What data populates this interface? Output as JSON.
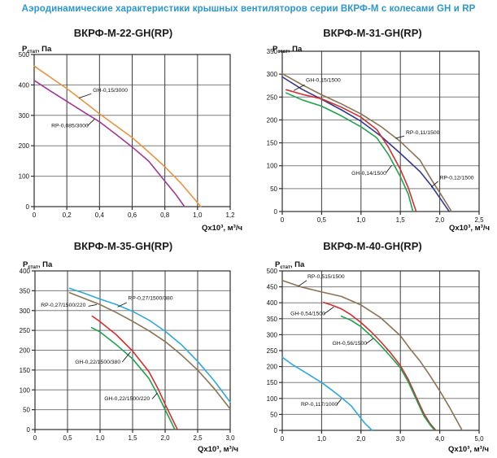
{
  "page": {
    "title": "Аэродинамические характеристики крышных вентиляторов серии ВКРФ-М с колесами GH и RP",
    "title_color": "#2C96CF"
  },
  "axis": {
    "y_title": {
      "pre": "P",
      "sub": "стат",
      "post": ", Па"
    },
    "x_title": "Qx10³, м³/ч"
  },
  "style": {
    "grid_h": "#7d7d7d",
    "grid_v": "#3c3c3c",
    "border": "#2e2e2e",
    "text": "#111111",
    "leader": "#1a1a1a"
  },
  "chart_data": [
    {
      "type": "line",
      "title": "ВКРФ-М-22-GH(RP)",
      "xlabel": "Qx10³, м³/ч",
      "ylabel": "Pстат, Па",
      "xlim": [
        0,
        1.2
      ],
      "ylim": [
        0,
        500
      ],
      "xticks": [
        "0",
        "0,2",
        "0,4",
        "0,6",
        "0,8",
        "1,0",
        "1,2"
      ],
      "yticks": [
        "0",
        "100",
        "200",
        "300",
        "400",
        "500"
      ],
      "series": [
        {
          "name": "GH-0,15/3000",
          "color": "#E8933F",
          "points": [
            [
              0,
              462
            ],
            [
              0.1,
              425
            ],
            [
              0.2,
              388
            ],
            [
              0.3,
              347
            ],
            [
              0.4,
              305
            ],
            [
              0.5,
              266
            ],
            [
              0.6,
              227
            ],
            [
              0.7,
              180
            ],
            [
              0.8,
              131
            ],
            [
              0.9,
              76
            ],
            [
              1.0,
              13
            ],
            [
              1.02,
              0
            ]
          ]
        },
        {
          "name": "RP-0,085/3000",
          "color": "#9E3A96",
          "points": [
            [
              0,
              415
            ],
            [
              0.1,
              380
            ],
            [
              0.2,
              346
            ],
            [
              0.3,
              312
            ],
            [
              0.4,
              279
            ],
            [
              0.5,
              238
            ],
            [
              0.6,
              196
            ],
            [
              0.7,
              150
            ],
            [
              0.8,
              84
            ],
            [
              0.87,
              38
            ],
            [
              0.92,
              0
            ]
          ]
        }
      ],
      "annotations": [
        {
          "text": "GH-0,15/3000",
          "tx": 0.36,
          "ty": 377,
          "line": [
            [
              0.35,
              371
            ],
            [
              0.275,
              357
            ]
          ]
        },
        {
          "text": "RP-0,085/3000",
          "tx": 0.105,
          "ty": 261,
          "line": [
            [
              0.325,
              265
            ],
            [
              0.37,
              288
            ]
          ]
        }
      ]
    },
    {
      "type": "line",
      "title": "ВКРФ-М-31-GH(RP)",
      "xlabel": "Qx10³, м³/ч",
      "ylabel": "Pстат, Па",
      "xlim": [
        0,
        2.5
      ],
      "ylim": [
        0,
        350
      ],
      "xticks": [
        "0",
        "0,5",
        "1,0",
        "1,5",
        "2,0",
        "2,5"
      ],
      "yticks": [
        "0",
        "50",
        "100",
        "150",
        "200",
        "250",
        "300",
        "350"
      ],
      "series": [
        {
          "name": "RP-0,11/1500",
          "color": "#8A7355",
          "points": [
            [
              0,
              301
            ],
            [
              0.25,
              277
            ],
            [
              0.5,
              255
            ],
            [
              0.75,
              235
            ],
            [
              1.0,
              213
            ],
            [
              1.25,
              186
            ],
            [
              1.5,
              153
            ],
            [
              1.75,
              112
            ],
            [
              1.9,
              68
            ],
            [
              2.05,
              28
            ],
            [
              2.15,
              0
            ]
          ]
        },
        {
          "name": "RP-0,12/1500",
          "color": "#333A8C",
          "points": [
            [
              0,
              294
            ],
            [
              0.25,
              267
            ],
            [
              0.5,
              245
            ],
            [
              0.75,
              222
            ],
            [
              1.0,
              197
            ],
            [
              1.25,
              165
            ],
            [
              1.5,
              127
            ],
            [
              1.75,
              87
            ],
            [
              1.9,
              55
            ],
            [
              2.0,
              30
            ],
            [
              2.12,
              0
            ]
          ]
        },
        {
          "name": "GH-0,15/1500",
          "color": "#D03030",
          "points": [
            [
              0.05,
              266
            ],
            [
              0.25,
              256
            ],
            [
              0.5,
              246
            ],
            [
              0.75,
              228
            ],
            [
              1.0,
              206
            ],
            [
              1.2,
              179
            ],
            [
              1.35,
              140
            ],
            [
              1.5,
              92
            ],
            [
              1.6,
              52
            ],
            [
              1.7,
              0
            ]
          ]
        },
        {
          "name": "GH-0,14/1500",
          "color": "#1FA050",
          "points": [
            [
              0.05,
              259
            ],
            [
              0.25,
              244
            ],
            [
              0.5,
              230
            ],
            [
              0.75,
              209
            ],
            [
              1.0,
              185
            ],
            [
              1.2,
              161
            ],
            [
              1.35,
              124
            ],
            [
              1.5,
              76
            ],
            [
              1.6,
              38
            ],
            [
              1.66,
              0
            ]
          ]
        }
      ],
      "annotations": [
        {
          "text": "GH-0,15/1500",
          "tx": 0.3,
          "ty": 283,
          "line": [
            [
              0.285,
              277
            ],
            [
              0.145,
              264
            ]
          ]
        },
        {
          "text": "RP-0,11/1500",
          "tx": 1.57,
          "ty": 169,
          "line": [
            [
              1.55,
              165
            ],
            [
              1.44,
              160
            ]
          ]
        },
        {
          "text": "GH-0,14/1500",
          "tx": 0.88,
          "ty": 80,
          "line": [
            [
              1.32,
              85
            ],
            [
              1.39,
              101
            ]
          ]
        },
        {
          "text": "RP-0,12/1500",
          "tx": 2.0,
          "ty": 70,
          "line": [
            [
              1.98,
              66
            ],
            [
              1.89,
              53
            ]
          ]
        }
      ]
    },
    {
      "type": "line",
      "title": "ВКРФ-М-35-GH(RP)",
      "xlabel": "Qx10³, м³/ч",
      "ylabel": "Pстат, Па",
      "xlim": [
        0,
        3.0
      ],
      "ylim": [
        0,
        400
      ],
      "xticks": [
        "0",
        "0,5",
        "1,0",
        "1,5",
        "2,0",
        "2,5",
        "3,0"
      ],
      "yticks": [
        "0",
        "50",
        "100",
        "150",
        "200",
        "250",
        "300",
        "350",
        "400"
      ],
      "series": [
        {
          "name": "RP-0,27/1500/380",
          "color": "#2FA8DC",
          "points": [
            [
              0.53,
              356
            ],
            [
              0.75,
              344
            ],
            [
              1.0,
              329
            ],
            [
              1.25,
              315
            ],
            [
              1.5,
              298
            ],
            [
              1.75,
              276
            ],
            [
              2.0,
              248
            ],
            [
              2.25,
              214
            ],
            [
              2.5,
              172
            ],
            [
              2.75,
              124
            ],
            [
              3.0,
              69
            ]
          ]
        },
        {
          "name": "RP-0,27/1500/220",
          "color": "#8A7355",
          "points": [
            [
              0.53,
              345
            ],
            [
              0.75,
              331
            ],
            [
              1.0,
              315
            ],
            [
              1.25,
              295
            ],
            [
              1.5,
              273
            ],
            [
              1.75,
              249
            ],
            [
              2.0,
              222
            ],
            [
              2.25,
              188
            ],
            [
              2.5,
              150
            ],
            [
              2.75,
              104
            ],
            [
              3.0,
              52
            ]
          ]
        },
        {
          "name": "GH-0,22/1500/380",
          "color": "#D03030",
          "points": [
            [
              0.88,
              286
            ],
            [
              1.0,
              272
            ],
            [
              1.25,
              239
            ],
            [
              1.5,
              198
            ],
            [
              1.75,
              146
            ],
            [
              1.9,
              100
            ],
            [
              2.0,
              64
            ],
            [
              2.1,
              30
            ],
            [
              2.19,
              0
            ]
          ]
        },
        {
          "name": "GH-0,22/1500/220",
          "color": "#1FA050",
          "points": [
            [
              0.87,
              257
            ],
            [
              1.0,
              246
            ],
            [
              1.25,
              214
            ],
            [
              1.5,
              178
            ],
            [
              1.75,
              129
            ],
            [
              1.9,
              84
            ],
            [
              2.0,
              50
            ],
            [
              2.15,
              0
            ]
          ]
        }
      ],
      "annotations": [
        {
          "text": "RP-0,27/1500/380",
          "tx": 1.43,
          "ty": 327,
          "line": [
            [
              1.41,
              320
            ],
            [
              1.27,
              309
            ]
          ]
        },
        {
          "text": "RP-0,27/1500/220",
          "tx": 0.09,
          "ty": 310,
          "line": [
            [
              0.82,
              311
            ],
            [
              0.95,
              315
            ]
          ]
        },
        {
          "text": "GH-0,22/1500/380",
          "tx": 0.615,
          "ty": 166,
          "line": [
            [
              1.34,
              170
            ],
            [
              1.47,
              196
            ]
          ]
        },
        {
          "text": "GH-0,22/1500/220",
          "tx": 1.065,
          "ty": 74,
          "line": [
            [
              1.8,
              77
            ],
            [
              1.88,
              92
            ]
          ]
        }
      ]
    },
    {
      "type": "line",
      "title": "ВКРФ-М-40-GH(RP)",
      "xlabel": "Qx10³, м³/ч",
      "ylabel": "Pстат, Па",
      "xlim": [
        0,
        5.0
      ],
      "ylim": [
        0,
        500
      ],
      "xticks": [
        "0",
        "1,0",
        "2,0",
        "3,0",
        "4,0",
        "5,0"
      ],
      "yticks": [
        "0",
        "50",
        "100",
        "150",
        "200",
        "250",
        "300",
        "350",
        "400",
        "450",
        "500"
      ],
      "series": [
        {
          "name": "RP-0,515/1500",
          "color": "#8A7355",
          "points": [
            [
              0,
              470
            ],
            [
              0.5,
              449
            ],
            [
              1.0,
              434
            ],
            [
              1.5,
              420
            ],
            [
              2.0,
              393
            ],
            [
              2.5,
              353
            ],
            [
              3.0,
              297
            ],
            [
              3.25,
              255
            ],
            [
              3.5,
              217
            ],
            [
              3.75,
              172
            ],
            [
              4.0,
              124
            ],
            [
              4.25,
              72
            ],
            [
              4.57,
              0
            ]
          ]
        },
        {
          "name": "GH-0,54/1500",
          "color": "#D03030",
          "points": [
            [
              1.05,
              401
            ],
            [
              1.25,
              393
            ],
            [
              1.5,
              381
            ],
            [
              1.75,
              362
            ],
            [
              2.0,
              338
            ],
            [
              2.25,
              310
            ],
            [
              2.5,
              278
            ],
            [
              2.75,
              243
            ],
            [
              3.0,
              203
            ],
            [
              3.2,
              160
            ],
            [
              3.4,
              105
            ],
            [
              3.6,
              52
            ],
            [
              3.75,
              22
            ],
            [
              3.9,
              0
            ]
          ]
        },
        {
          "name": "GH-0,56/1500",
          "color": "#1FA050",
          "points": [
            [
              1.5,
              358
            ],
            [
              1.75,
              345
            ],
            [
              2.0,
              325
            ],
            [
              2.25,
              297
            ],
            [
              2.5,
              266
            ],
            [
              2.75,
              232
            ],
            [
              3.0,
              196
            ],
            [
              3.2,
              152
            ],
            [
              3.4,
              98
            ],
            [
              3.6,
              45
            ],
            [
              3.75,
              18
            ],
            [
              3.87,
              0
            ]
          ]
        },
        {
          "name": "RP-0,117/1000",
          "color": "#2FA8DC",
          "points": [
            [
              0,
              229
            ],
            [
              0.25,
              207
            ],
            [
              0.5,
              188
            ],
            [
              0.75,
              169
            ],
            [
              1.0,
              150
            ],
            [
              1.25,
              127
            ],
            [
              1.5,
              103
            ],
            [
              1.75,
              77
            ],
            [
              1.92,
              50
            ],
            [
              2.1,
              22
            ],
            [
              2.28,
              0
            ]
          ]
        }
      ],
      "annotations": [
        {
          "text": "RP-0,515/1500",
          "tx": 0.64,
          "ty": 477,
          "line": [
            [
              0.62,
              470
            ],
            [
              0.41,
              452
            ]
          ]
        },
        {
          "text": "GH-0,54/1500",
          "tx": 0.21,
          "ty": 361,
          "line": [
            [
              1.05,
              364
            ],
            [
              1.31,
              387
            ]
          ]
        },
        {
          "text": "GH-0,56/1500",
          "tx": 1.27,
          "ty": 268,
          "line": [
            [
              2.13,
              272
            ],
            [
              2.31,
              288
            ]
          ]
        },
        {
          "text": "RP-0,117/1000",
          "tx": 0.475,
          "ty": 76,
          "line": [
            [
              1.38,
              80
            ],
            [
              1.5,
              98
            ]
          ]
        }
      ]
    }
  ]
}
